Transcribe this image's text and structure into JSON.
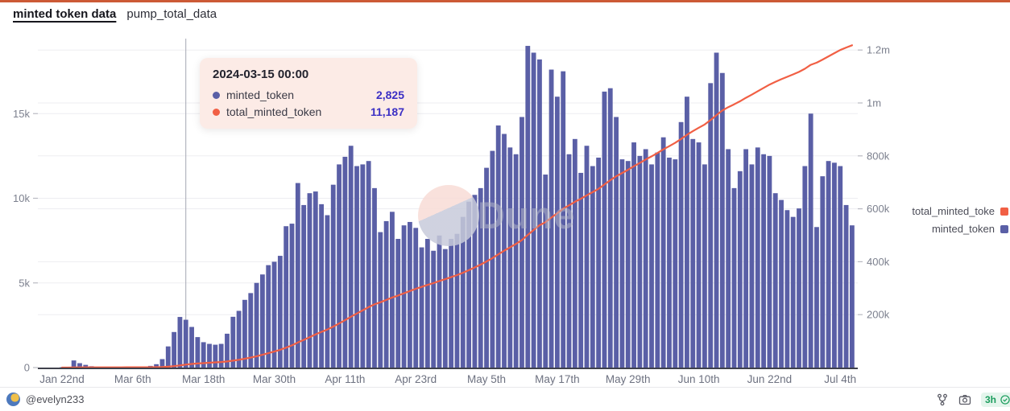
{
  "header": {
    "title": "minted token data",
    "subtitle": "pump_total_data"
  },
  "tooltip": {
    "date": "2024-03-15 00:00",
    "rows": [
      {
        "label": "minted_token",
        "value": "2,825",
        "color": "#5a5fa6"
      },
      {
        "label": "total_minted_token",
        "value": "11,187",
        "color": "#f15f44"
      }
    ]
  },
  "legend": [
    {
      "label": "total_minted_toke",
      "color": "#f15f44"
    },
    {
      "label": "minted_token",
      "color": "#5a5fa6"
    }
  ],
  "watermark": {
    "text": "Dune",
    "circle_pink": "#f8dcd6",
    "circle_lavender": "#c7cada",
    "text_color": "#b9bcca"
  },
  "footer": {
    "author": "@evelyn233",
    "refresh_age": "3h"
  },
  "chart_data": {
    "type": "bar",
    "title": "minted token data",
    "x_tick_labels": [
      "Jan 22nd",
      "Mar 6th",
      "Mar 18th",
      "Mar 30th",
      "Apr 11th",
      "Apr 23rd",
      "May 5th",
      "May 17th",
      "May 29th",
      "Jun 10th",
      "Jun 22nd",
      "Jul 4th"
    ],
    "x_tick_indices": [
      0,
      12,
      24,
      36,
      48,
      60,
      72,
      84,
      96,
      108,
      120,
      132
    ],
    "left_axis": {
      "tick_labels": [
        "0",
        "5k",
        "10k",
        "15k"
      ],
      "tick_values": [
        0,
        5000,
        10000,
        15000
      ],
      "max": 19800
    },
    "right_axis": {
      "tick_labels": [
        "200k",
        "400k",
        "600k",
        "800k",
        "1m",
        "1.2m"
      ],
      "tick_values": [
        200000,
        400000,
        600000,
        800000,
        1000000,
        1200000
      ],
      "max": 1260000
    },
    "highlight_index": 21,
    "highlight_date": "2024-03-15 00:00",
    "bar_series": {
      "name": "minted_token",
      "axis": "left",
      "color": "#5a5fa6",
      "values": [
        20,
        40,
        420,
        260,
        160,
        80,
        30,
        20,
        10,
        10,
        10,
        10,
        30,
        40,
        60,
        100,
        200,
        500,
        1250,
        2100,
        2990,
        2825,
        2400,
        1800,
        1500,
        1400,
        1350,
        1400,
        2000,
        3000,
        3350,
        4000,
        4400,
        5000,
        5500,
        6050,
        6250,
        6600,
        8350,
        8500,
        10900,
        9600,
        10300,
        10400,
        9650,
        9000,
        10800,
        12000,
        12450,
        13100,
        11900,
        12000,
        12200,
        10600,
        8000,
        8650,
        9200,
        7600,
        8400,
        8600,
        8250,
        7100,
        7600,
        6900,
        7800,
        7000,
        7600,
        7900,
        8900,
        9800,
        10200,
        10600,
        11800,
        12800,
        14300,
        13800,
        13000,
        12600,
        14800,
        19000,
        18600,
        18200,
        11400,
        17600,
        16000,
        17500,
        12600,
        13500,
        11500,
        13100,
        11900,
        12400,
        16300,
        16500,
        14800,
        12300,
        12200,
        13300,
        12500,
        12900,
        12000,
        12700,
        13600,
        12400,
        12300,
        14500,
        16000,
        13500,
        13300,
        12000,
        16800,
        18600,
        17400,
        12900,
        10600,
        11600,
        12900,
        12000,
        13000,
        12600,
        12500,
        10300,
        9900,
        9300,
        8900,
        9400,
        11900,
        15000,
        8300,
        11300,
        12200,
        12100,
        11900,
        9600,
        8400
      ]
    },
    "line_series": {
      "name": "total_minted_token",
      "axis": "right",
      "color": "#f15f44",
      "derivation": "cumulative_sum_of_minted_token",
      "end_value": 1217915
    }
  }
}
